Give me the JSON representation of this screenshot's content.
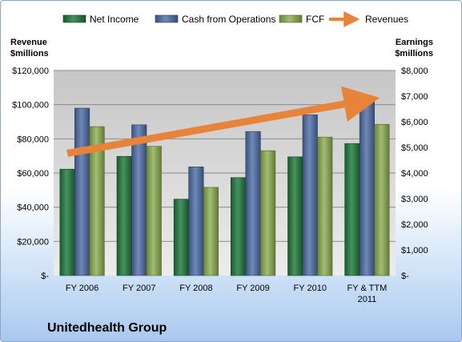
{
  "chart_data": {
    "type": "bar",
    "title": "Unitedhealth Group",
    "categories": [
      [
        "FY 2006"
      ],
      [
        "FY 2007"
      ],
      [
        "FY 2008"
      ],
      [
        "FY 2009"
      ],
      [
        "FY 2010"
      ],
      [
        "FY & TTM",
        "2011"
      ]
    ],
    "left_axis": {
      "label": [
        "Revenue",
        "$millions"
      ],
      "ylim": [
        0,
        120000
      ],
      "ticks": [
        0,
        20000,
        40000,
        60000,
        80000,
        100000,
        120000
      ],
      "tick_labels": [
        "$-",
        "$20,000",
        "$40,000",
        "$60,000",
        "$80,000",
        "$100,000",
        "$120,000"
      ]
    },
    "right_axis": {
      "label": [
        "Earnings",
        "$millions"
      ],
      "ylim": [
        0,
        8000
      ],
      "ticks": [
        0,
        1000,
        2000,
        3000,
        4000,
        5000,
        6000,
        7000,
        8000
      ],
      "tick_labels": [
        "$-",
        "$1,000",
        "$2,000",
        "$3,000",
        "$4,000",
        "$5,000",
        "$6,000",
        "$7,000",
        "$8,000"
      ]
    },
    "series": [
      {
        "name": "Net Income",
        "axis": "right",
        "color": "#1f7a3c",
        "values": [
          4150,
          4650,
          2980,
          3820,
          4630,
          5150
        ]
      },
      {
        "name": "Cash from Operations",
        "axis": "right",
        "color": "#4f6fa8",
        "values": [
          6530,
          5880,
          4240,
          5620,
          6270,
          6990
        ]
      },
      {
        "name": "FCF",
        "axis": "right",
        "color": "#8db052",
        "values": [
          5810,
          5040,
          3440,
          4870,
          5400,
          5900
        ]
      }
    ],
    "revenues": {
      "name": "Revenues",
      "type": "arrow",
      "color": "#e8843a",
      "axis": "left",
      "start": 71500,
      "end": 102000
    },
    "grid": true,
    "legend_position": "top"
  }
}
